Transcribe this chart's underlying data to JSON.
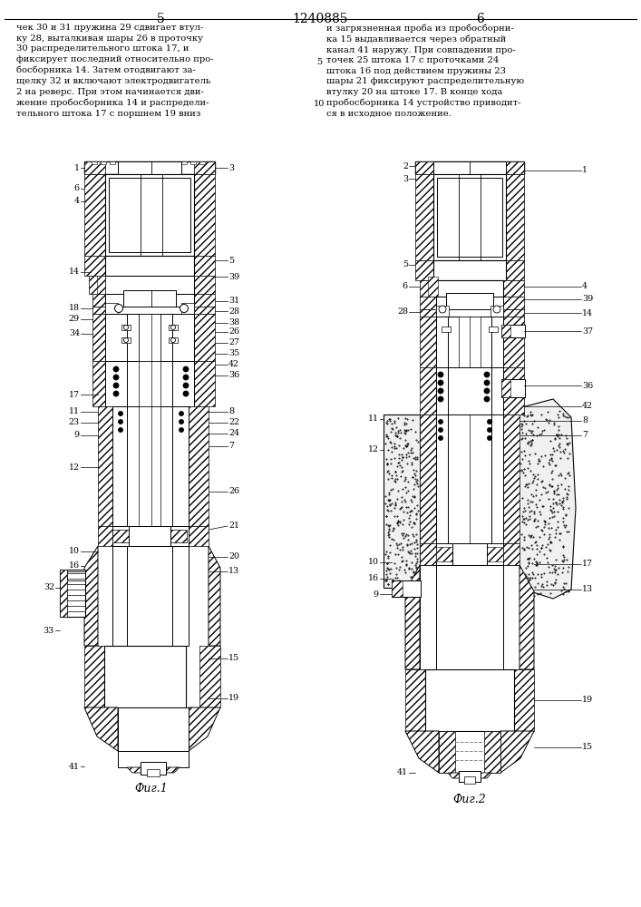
{
  "bg": "#ffffff",
  "page_left": "5",
  "page_center": "1240885",
  "page_right": "6",
  "fig1_cap": "Фиг.1",
  "fig2_cap": "Фиг.2",
  "txt_left": "чек 30 и 31 пружина 29 сдвигает втул-\nку 28, выталкивая шары 26 в проточку\n30 распределительного штока 17, и\nфиксирует последний относительно про-\nбосборника 14. Затем отодвигают за-\nщелку 32 и включают электродвигатель\n2 на реверс. При этом начинается дви-\nжение пробосборника 14 и распредели-\nтельного штока 17 с поршнем 19 вниз",
  "txt_right": "и загрязненная проба из пробосборни-\nка 15 выдавливается через обратный\nканал 41 наружу. При совпадении про-\nточек 25 штока 17 с проточками 24\nштока 16 под действием пружины 23\nшары 21 фиксируют распределительную\nвтулку 20 на штоке 17. В конце хода\nпробосборника 14 устройство приводит-\nся в исходное положение."
}
